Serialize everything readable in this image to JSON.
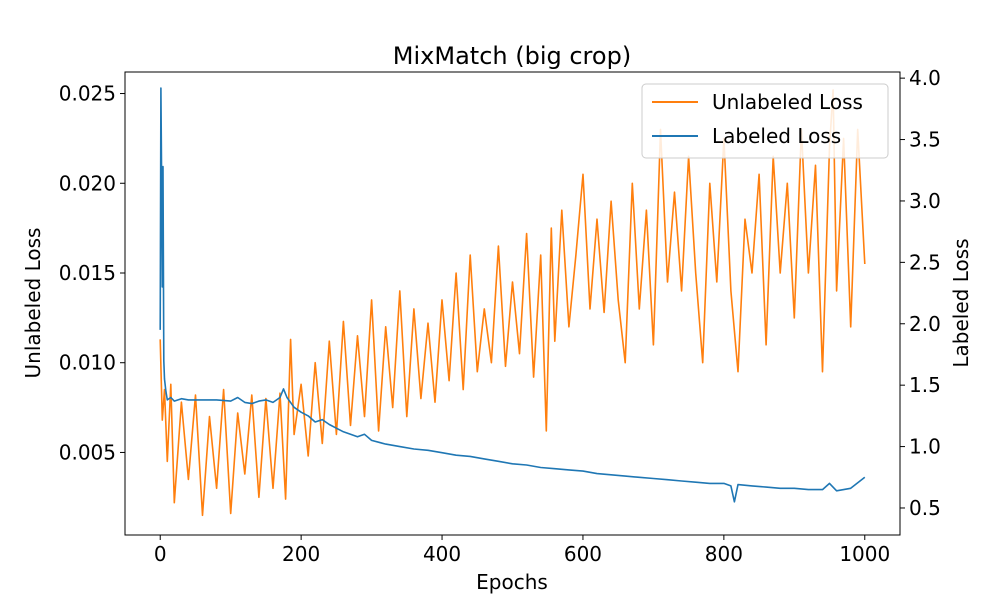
{
  "chart_data": {
    "type": "line",
    "title": "MixMatch (big crop)",
    "xlabel": "Epochs",
    "ylabel_left": "Unlabeled Loss",
    "ylabel_right": "Labeled Loss",
    "xlim": [
      -50,
      1050
    ],
    "ylim_left": [
      0.0004,
      0.0262
    ],
    "ylim_right": [
      0.28,
      4.05
    ],
    "x_ticks": [
      0,
      200,
      400,
      600,
      800,
      1000
    ],
    "y_ticks_left": [
      0.005,
      0.01,
      0.015,
      0.02,
      0.025
    ],
    "y_tick_labels_left": [
      "0.005",
      "0.010",
      "0.015",
      "0.020",
      "0.025"
    ],
    "y_ticks_right": [
      0.5,
      1.0,
      1.5,
      2.0,
      2.5,
      3.0,
      3.5,
      4.0
    ],
    "y_tick_labels_right": [
      "0.5",
      "1.0",
      "1.5",
      "2.0",
      "2.5",
      "3.0",
      "3.5",
      "4.0"
    ],
    "legend_position": "upper right",
    "grid": false,
    "series": [
      {
        "name": "Unlabeled Loss",
        "axis": "left",
        "color": "#ff7f0e",
        "x": [
          0,
          3,
          6,
          10,
          15,
          20,
          30,
          40,
          50,
          60,
          70,
          80,
          90,
          100,
          110,
          120,
          130,
          140,
          150,
          160,
          170,
          178,
          185,
          190,
          200,
          210,
          220,
          230,
          240,
          250,
          260,
          270,
          280,
          290,
          300,
          310,
          320,
          330,
          340,
          350,
          360,
          370,
          380,
          390,
          400,
          410,
          420,
          430,
          440,
          450,
          460,
          470,
          480,
          490,
          500,
          510,
          520,
          530,
          540,
          548,
          555,
          560,
          570,
          580,
          590,
          600,
          610,
          620,
          630,
          640,
          650,
          660,
          670,
          680,
          690,
          700,
          706,
          710,
          720,
          730,
          740,
          750,
          760,
          770,
          780,
          790,
          800,
          810,
          820,
          830,
          840,
          850,
          860,
          870,
          880,
          890,
          900,
          910,
          920,
          930,
          940,
          950,
          955,
          960,
          970,
          980,
          990,
          1000
        ],
        "y": [
          0.0113,
          0.0068,
          0.0085,
          0.0045,
          0.0088,
          0.0022,
          0.0078,
          0.0035,
          0.0082,
          0.0015,
          0.007,
          0.003,
          0.0085,
          0.0016,
          0.0072,
          0.0038,
          0.0082,
          0.0025,
          0.008,
          0.003,
          0.0083,
          0.0024,
          0.0113,
          0.006,
          0.0088,
          0.0048,
          0.01,
          0.0055,
          0.0112,
          0.006,
          0.0123,
          0.0065,
          0.0115,
          0.007,
          0.0135,
          0.0062,
          0.012,
          0.0075,
          0.014,
          0.007,
          0.013,
          0.008,
          0.0122,
          0.0078,
          0.0135,
          0.009,
          0.015,
          0.0085,
          0.016,
          0.0095,
          0.013,
          0.01,
          0.0165,
          0.0098,
          0.0145,
          0.0105,
          0.0172,
          0.0092,
          0.016,
          0.0062,
          0.0175,
          0.0112,
          0.0185,
          0.012,
          0.016,
          0.0205,
          0.013,
          0.018,
          0.0128,
          0.019,
          0.0135,
          0.01,
          0.02,
          0.013,
          0.0185,
          0.011,
          0.018,
          0.023,
          0.0145,
          0.0195,
          0.014,
          0.0215,
          0.015,
          0.01,
          0.02,
          0.0145,
          0.0225,
          0.014,
          0.0095,
          0.018,
          0.015,
          0.0205,
          0.011,
          0.0215,
          0.015,
          0.02,
          0.0125,
          0.023,
          0.015,
          0.021,
          0.0095,
          0.022,
          0.0252,
          0.014,
          0.0225,
          0.012,
          0.023,
          0.0155
        ]
      },
      {
        "name": "Labeled Loss",
        "axis": "right",
        "color": "#1f77b4",
        "x": [
          0,
          1,
          2,
          3,
          4,
          5,
          6,
          8,
          10,
          15,
          20,
          30,
          40,
          60,
          80,
          100,
          110,
          120,
          130,
          140,
          150,
          160,
          170,
          175,
          180,
          190,
          200,
          210,
          220,
          230,
          240,
          250,
          260,
          270,
          280,
          290,
          300,
          320,
          340,
          360,
          380,
          400,
          420,
          440,
          460,
          480,
          500,
          520,
          540,
          560,
          580,
          600,
          620,
          640,
          660,
          680,
          700,
          720,
          740,
          760,
          780,
          800,
          810,
          815,
          820,
          840,
          860,
          880,
          900,
          920,
          940,
          950,
          960,
          980,
          1000
        ],
        "y": [
          1.95,
          3.92,
          3.2,
          2.3,
          3.28,
          1.7,
          1.55,
          1.45,
          1.38,
          1.4,
          1.37,
          1.39,
          1.38,
          1.38,
          1.38,
          1.37,
          1.4,
          1.36,
          1.35,
          1.37,
          1.38,
          1.36,
          1.4,
          1.47,
          1.4,
          1.32,
          1.28,
          1.25,
          1.2,
          1.22,
          1.18,
          1.15,
          1.12,
          1.1,
          1.08,
          1.1,
          1.05,
          1.02,
          1.0,
          0.98,
          0.97,
          0.95,
          0.93,
          0.92,
          0.9,
          0.88,
          0.86,
          0.85,
          0.83,
          0.82,
          0.81,
          0.8,
          0.78,
          0.77,
          0.76,
          0.75,
          0.74,
          0.73,
          0.72,
          0.71,
          0.7,
          0.7,
          0.68,
          0.55,
          0.69,
          0.68,
          0.67,
          0.66,
          0.66,
          0.65,
          0.65,
          0.7,
          0.64,
          0.66,
          0.75
        ]
      }
    ]
  }
}
